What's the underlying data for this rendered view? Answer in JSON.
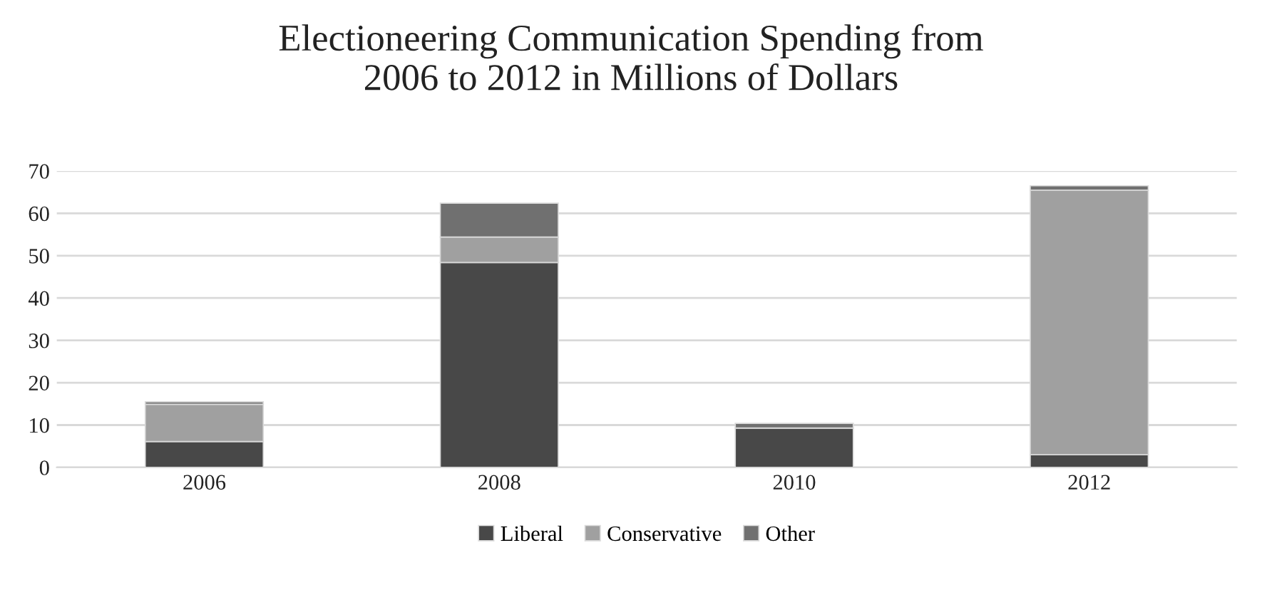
{
  "chart_data": {
    "type": "bar",
    "title": "Electioneering Communication Spending from\n2006 to 2012 in Millions of Dollars",
    "categories": [
      "2006",
      "2008",
      "2010",
      "2012"
    ],
    "series": [
      {
        "name": "Liberal",
        "color": "#484848",
        "values": [
          6.1,
          48.4,
          9.3,
          3.0
        ]
      },
      {
        "name": "Conservative",
        "color": "#a0a0a0",
        "values": [
          8.8,
          6.0,
          0,
          62.5
        ]
      },
      {
        "name": "Other",
        "color": "#707070",
        "values": [
          0.6,
          8.0,
          1.1,
          1.0
        ]
      }
    ],
    "stacked": true,
    "ylim": [
      0,
      70
    ],
    "yticks": [
      0,
      10,
      20,
      30,
      40,
      50,
      60,
      70
    ],
    "grid": "y",
    "legend": "bottom"
  }
}
